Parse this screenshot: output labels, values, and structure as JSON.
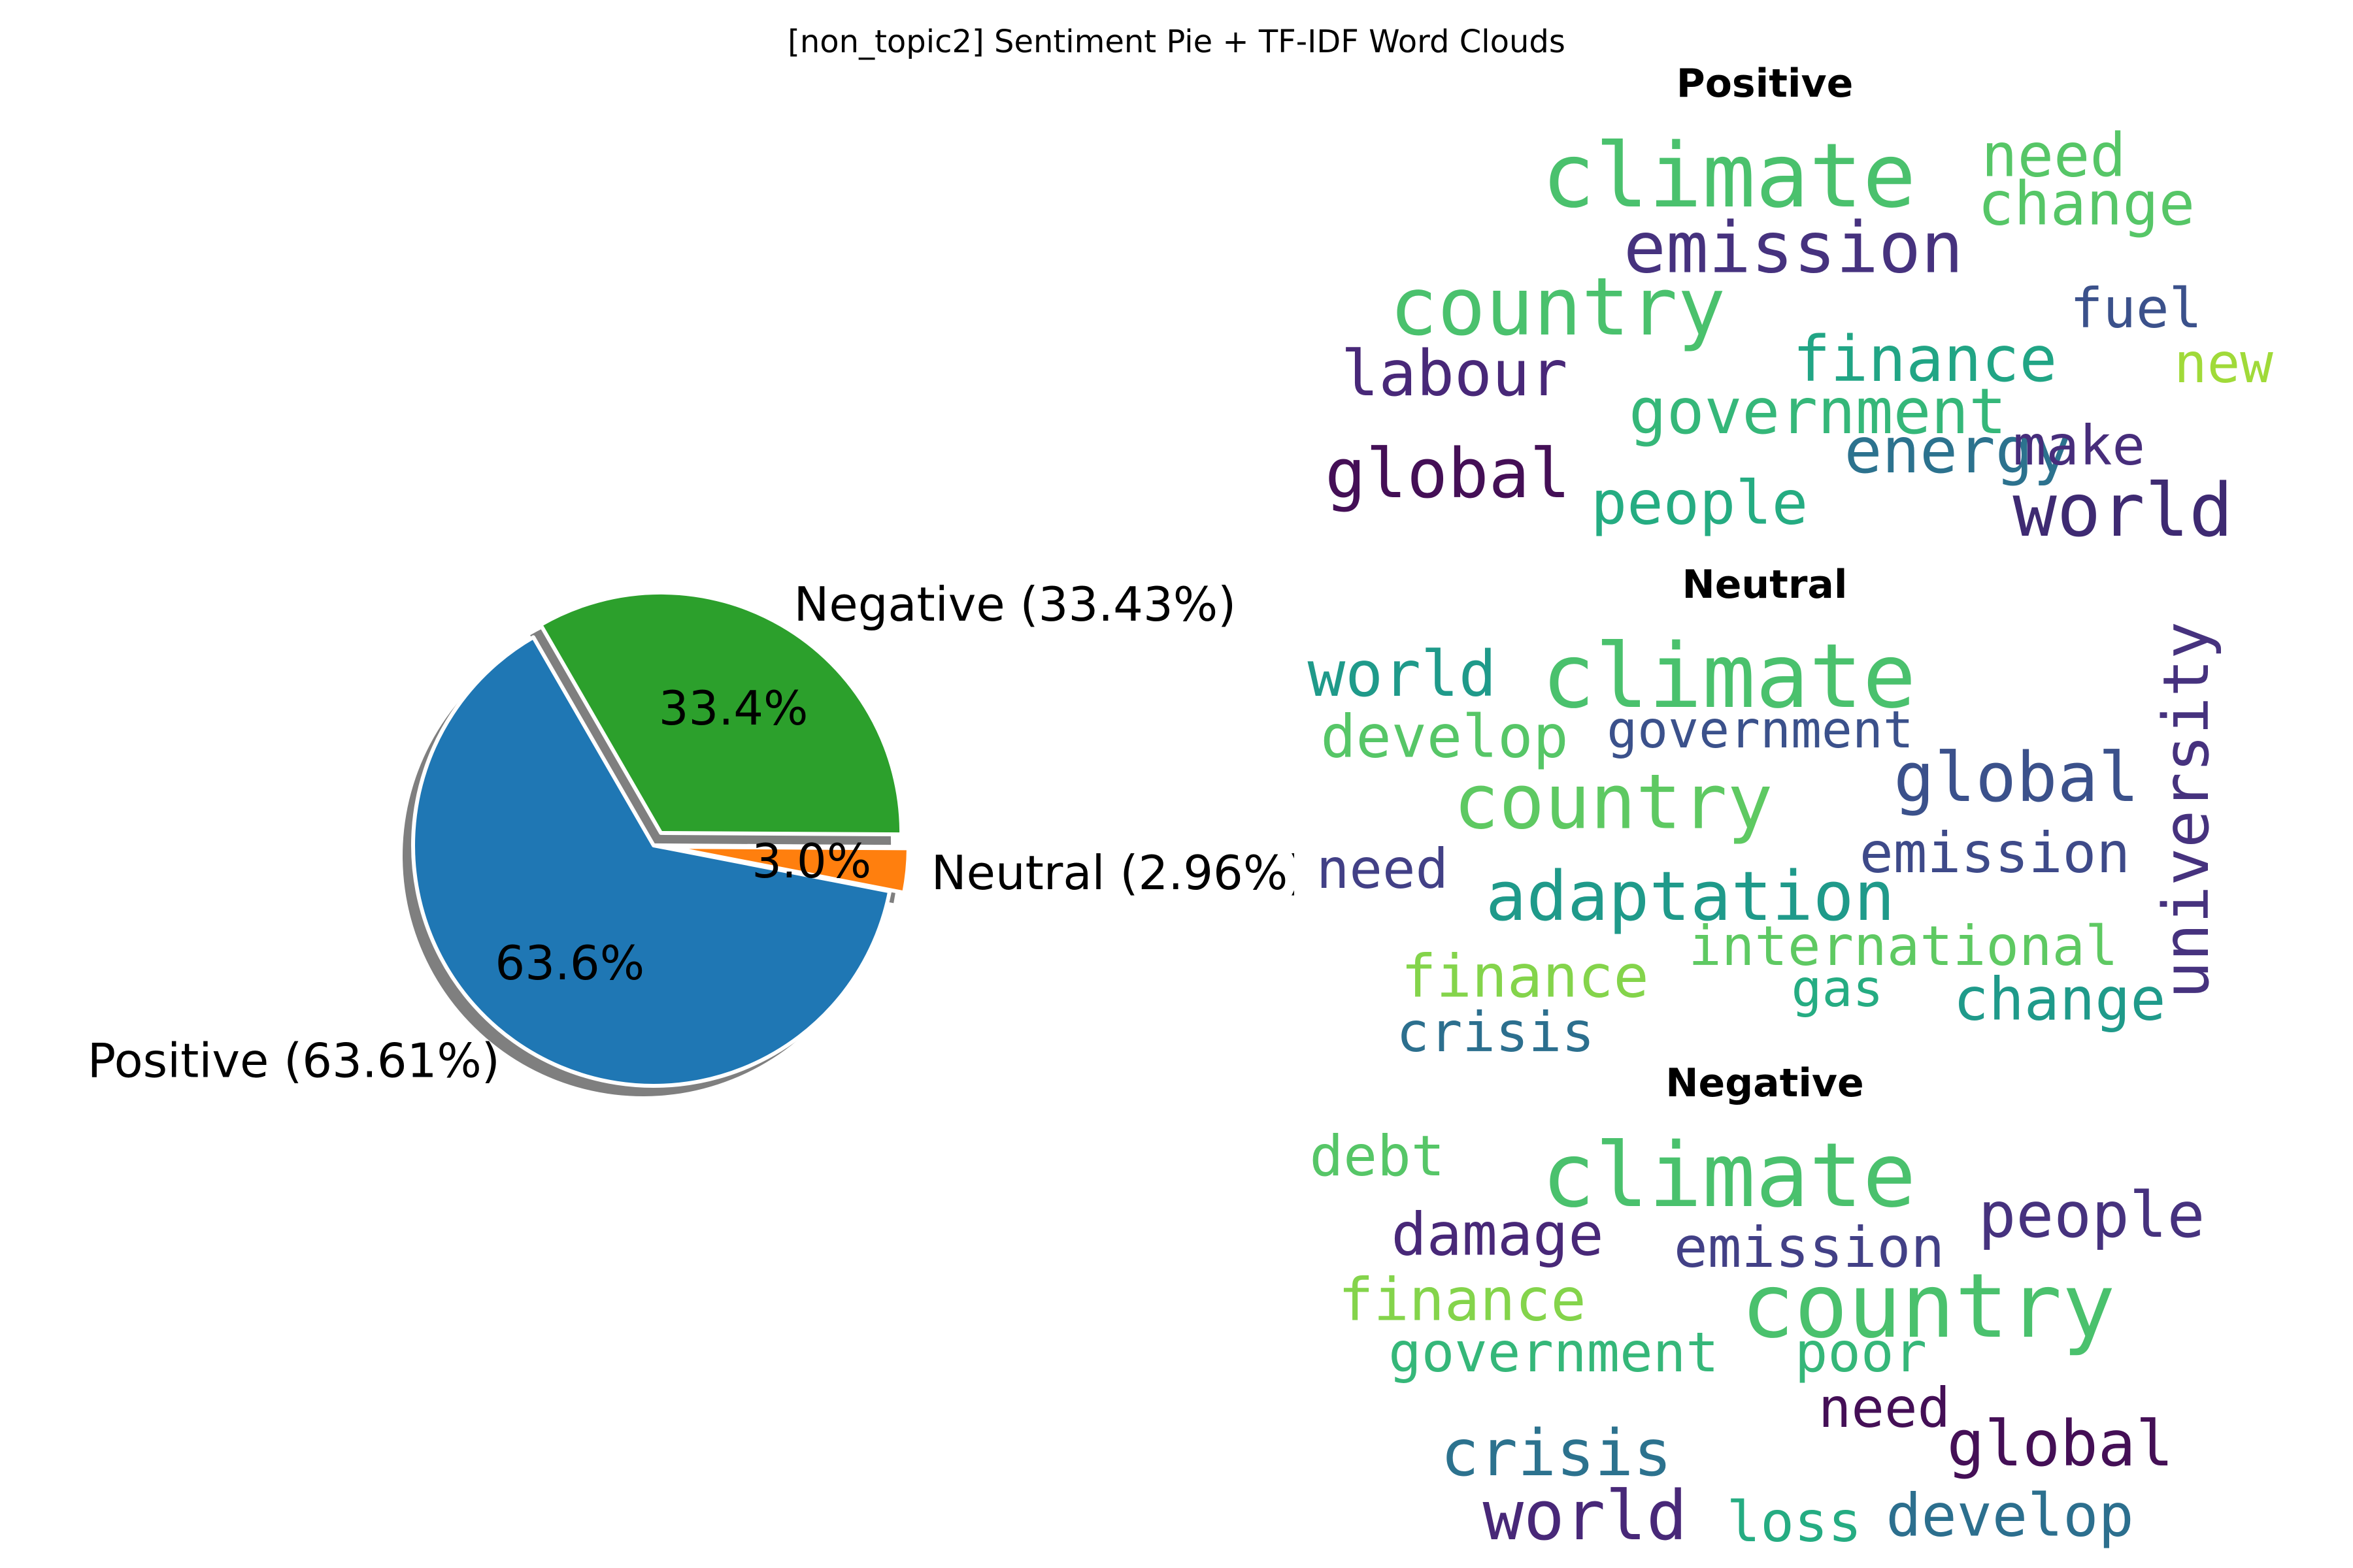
{
  "figure": {
    "title": "[non_topic2] Sentiment Pie + TF-IDF Word Clouds"
  },
  "chart_data": [
    {
      "type": "pie",
      "title": "",
      "slices": [
        {
          "label": "Positive",
          "value": 63.61,
          "outer_label": "Positive (63.61%)",
          "pct_label": "63.6%",
          "color": "#1f77b4",
          "explode": false
        },
        {
          "label": "Neutral",
          "value": 2.96,
          "outer_label": "Neutral (2.96%)",
          "pct_label": "3.0%",
          "color": "#ff7f0e",
          "explode": true
        },
        {
          "label": "Negative",
          "value": 33.43,
          "outer_label": "Negative (33.43%)",
          "pct_label": "33.4%",
          "color": "#2ca02c",
          "explode": true
        }
      ],
      "start_angle_deg": 120,
      "shadow": true
    },
    {
      "type": "wordcloud",
      "title": "Positive",
      "words": [
        {
          "text": "climate",
          "weight": 1.0,
          "color": "#4ac16d"
        },
        {
          "text": "need",
          "weight": 0.5,
          "color": "#56c667"
        },
        {
          "text": "change",
          "weight": 0.5,
          "color": "#56c667"
        },
        {
          "text": "emission",
          "weight": 0.62,
          "color": "#46327e"
        },
        {
          "text": "country",
          "weight": 0.9,
          "color": "#4ac16d"
        },
        {
          "text": "fuel",
          "weight": 0.45,
          "color": "#3b518b"
        },
        {
          "text": "finance",
          "weight": 0.55,
          "color": "#21a585"
        },
        {
          "text": "new",
          "weight": 0.45,
          "color": "#a0da39"
        },
        {
          "text": "labour",
          "weight": 0.52,
          "color": "#482878"
        },
        {
          "text": "government",
          "weight": 0.55,
          "color": "#35b779"
        },
        {
          "text": "energy",
          "weight": 0.55,
          "color": "#2c728e"
        },
        {
          "text": "make",
          "weight": 0.45,
          "color": "#472d7b"
        },
        {
          "text": "global",
          "weight": 0.6,
          "color": "#440f56"
        },
        {
          "text": "world",
          "weight": 0.7,
          "color": "#3e2a72"
        },
        {
          "text": "people",
          "weight": 0.5,
          "color": "#25ac82"
        }
      ]
    },
    {
      "type": "wordcloud",
      "title": "Neutral",
      "words": [
        {
          "text": "world",
          "weight": 0.55,
          "color": "#1f9a8a"
        },
        {
          "text": "climate",
          "weight": 1.0,
          "color": "#4ac16d"
        },
        {
          "text": "university",
          "weight": 0.55,
          "color": "#46327e"
        },
        {
          "text": "develop",
          "weight": 0.5,
          "color": "#56c667"
        },
        {
          "text": "government",
          "weight": 0.45,
          "color": "#3b518b"
        },
        {
          "text": "country",
          "weight": 0.7,
          "color": "#5ec962"
        },
        {
          "text": "global",
          "weight": 0.62,
          "color": "#3b518b"
        },
        {
          "text": "need",
          "weight": 0.45,
          "color": "#424086"
        },
        {
          "text": "emission",
          "weight": 0.48,
          "color": "#3e4a89"
        },
        {
          "text": "adaptation",
          "weight": 0.62,
          "color": "#1f9a8a"
        },
        {
          "text": "international",
          "weight": 0.45,
          "color": "#5ec962"
        },
        {
          "text": "finance",
          "weight": 0.52,
          "color": "#84d44b"
        },
        {
          "text": "gas",
          "weight": 0.4,
          "color": "#25ac82"
        },
        {
          "text": "change",
          "weight": 0.5,
          "color": "#1f9a8a"
        },
        {
          "text": "crisis",
          "weight": 0.45,
          "color": "#2c6f8e"
        }
      ]
    },
    {
      "type": "wordcloud",
      "title": "Negative",
      "words": [
        {
          "text": "debt",
          "weight": 0.45,
          "color": "#56c667"
        },
        {
          "text": "climate",
          "weight": 1.0,
          "color": "#4ac16d"
        },
        {
          "text": "people",
          "weight": 0.55,
          "color": "#46327e"
        },
        {
          "text": "damage",
          "weight": 0.5,
          "color": "#482878"
        },
        {
          "text": "emission",
          "weight": 0.5,
          "color": "#424086"
        },
        {
          "text": "finance",
          "weight": 0.48,
          "color": "#84d44b"
        },
        {
          "text": "country",
          "weight": 0.85,
          "color": "#4ac16d"
        },
        {
          "text": "government",
          "weight": 0.48,
          "color": "#35b779"
        },
        {
          "text": "poor",
          "weight": 0.45,
          "color": "#35b779"
        },
        {
          "text": "need",
          "weight": 0.45,
          "color": "#440f56"
        },
        {
          "text": "global",
          "weight": 0.58,
          "color": "#440f56"
        },
        {
          "text": "crisis",
          "weight": 0.55,
          "color": "#2c728e"
        },
        {
          "text": "world",
          "weight": 0.65,
          "color": "#482878"
        },
        {
          "text": "loss",
          "weight": 0.45,
          "color": "#25ac82"
        },
        {
          "text": "develop",
          "weight": 0.5,
          "color": "#2c6f8e"
        }
      ]
    }
  ]
}
